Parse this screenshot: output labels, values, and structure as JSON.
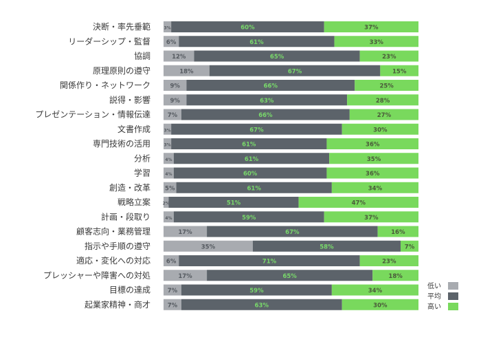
{
  "chart_data": {
    "type": "bar",
    "orientation": "horizontal",
    "stacked": true,
    "title": "",
    "xlabel": "",
    "ylabel": "",
    "xlim": [
      0,
      100
    ],
    "grid": false,
    "legend_position": "bottom-right",
    "categories": [
      "決断・率先垂範",
      "リーダーシップ・監督",
      "協調",
      "原理原則の遵守",
      "関係作り・ネットワーク",
      "説得・影響",
      "プレゼンテーション・情報伝達",
      "文書作成",
      "専門技術の活用",
      "分析",
      "学習",
      "創造・改革",
      "戦略立案",
      "計画・段取り",
      "顧客志向・業務管理",
      "指示や手順の遵守",
      "適応・変化への対応",
      "プレッシャーや障害への対処",
      "目標の達成",
      "起業家精神・商才"
    ],
    "series": [
      {
        "name": "低い",
        "color": "#a8abb0",
        "label_color": "#555a60",
        "values": [
          3,
          6,
          12,
          18,
          9,
          9,
          7,
          3,
          3,
          4,
          4,
          5,
          2,
          4,
          17,
          35,
          6,
          17,
          7,
          7
        ]
      },
      {
        "name": "平均",
        "color": "#5c636a",
        "label_color": "#79d96b",
        "values": [
          60,
          61,
          65,
          67,
          66,
          63,
          66,
          67,
          61,
          61,
          60,
          61,
          51,
          59,
          67,
          58,
          71,
          65,
          59,
          63
        ]
      },
      {
        "name": "高い",
        "color": "#79d95d",
        "label_color": "#4a5a3a",
        "values": [
          37,
          33,
          23,
          15,
          25,
          28,
          27,
          30,
          36,
          35,
          36,
          34,
          47,
          37,
          16,
          7,
          23,
          18,
          34,
          30
        ]
      }
    ],
    "value_suffix": "%"
  }
}
